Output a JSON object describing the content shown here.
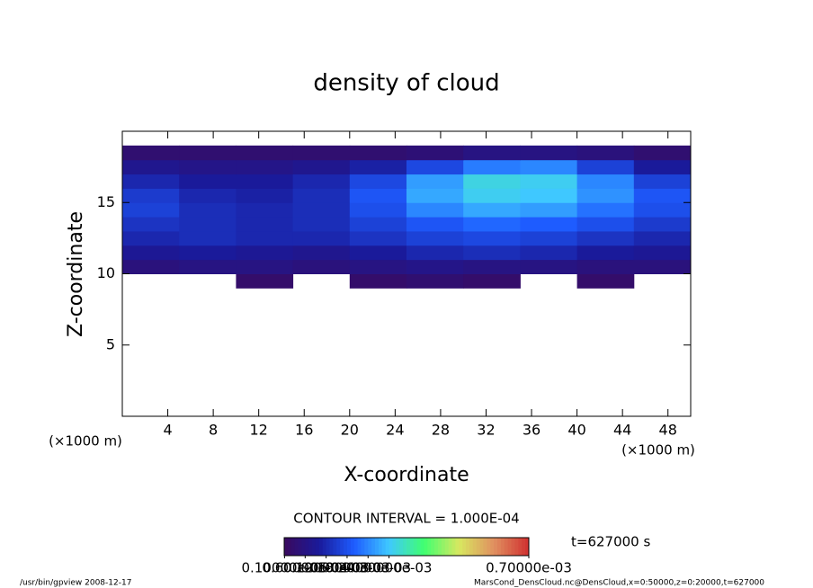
{
  "chart_data": {
    "type": "heatmap",
    "title": "density of cloud",
    "x_label": "X-coordinate",
    "y_label": "Z-coordinate",
    "x_unit": "(×1000 m)",
    "y_unit": "(×1000 m)",
    "xlim": [
      0,
      50
    ],
    "ylim": [
      0,
      20
    ],
    "xticks": [
      4,
      8,
      12,
      16,
      20,
      24,
      28,
      32,
      36,
      40,
      44,
      48
    ],
    "yticks": [
      5,
      10,
      15
    ],
    "x_edges": [
      0,
      5,
      10,
      15,
      20,
      25,
      30,
      35,
      40,
      45,
      50
    ],
    "y_edges": [
      9,
      10,
      11,
      12,
      13,
      14,
      15,
      16,
      17,
      18,
      19
    ],
    "values": [
      [
        null,
        null,
        2e-05,
        null,
        2e-05,
        3e-05,
        2e-05,
        null,
        2e-05,
        null
      ],
      [
        5e-05,
        6e-05,
        6e-05,
        5e-05,
        6e-05,
        7e-05,
        6e-05,
        6e-05,
        5e-05,
        5e-05
      ],
      [
        9e-05,
        0.0001,
        9e-05,
        8e-05,
        0.0001,
        0.00012,
        0.00013,
        0.00012,
        0.0001,
        9e-05
      ],
      [
        0.00012,
        0.00013,
        0.00012,
        0.00012,
        0.00014,
        0.00016,
        0.00017,
        0.00016,
        0.00014,
        0.00012
      ],
      [
        0.00014,
        0.00013,
        0.00012,
        0.00013,
        0.00016,
        0.00019,
        0.00021,
        0.0002,
        0.00018,
        0.00015
      ],
      [
        0.00016,
        0.00013,
        0.00012,
        0.00013,
        0.00018,
        0.00024,
        0.00027,
        0.00026,
        0.00022,
        0.00018
      ],
      [
        0.00015,
        0.00012,
        0.00011,
        0.00013,
        0.00019,
        0.00027,
        0.00031,
        0.0003,
        0.00025,
        0.00019
      ],
      [
        0.00012,
        0.0001,
        0.0001,
        0.00012,
        0.00017,
        0.00026,
        0.00032,
        0.00031,
        0.00024,
        0.00016
      ],
      [
        8e-05,
        7e-05,
        7e-05,
        8e-05,
        0.00011,
        0.00017,
        0.00023,
        0.00024,
        0.00016,
        0.0001
      ],
      [
        3e-05,
        3e-05,
        3e-05,
        3e-05,
        3e-05,
        4e-05,
        6e-05,
        6e-05,
        5e-05,
        3e-05
      ]
    ],
    "zlim": [
      0,
      0.0007
    ],
    "colormap": [
      "#3a0a5e",
      "#1a1a9a",
      "#1e5cff",
      "#3fc8ff",
      "#40ff70",
      "#d8e860",
      "#e09060",
      "#d03030"
    ],
    "colorbar_ticks": [
      {
        "value": 1e-06,
        "label": "0.10000e-05"
      },
      {
        "value": 6e-05,
        "label": "0.60000e-04"
      },
      {
        "value": 0.00012,
        "label": "0.12000e-03"
      },
      {
        "value": 0.00018,
        "label": "0.18000e-03"
      },
      {
        "value": 0.00024,
        "label": "0.24000e-03"
      },
      {
        "value": 0.0003,
        "label": "0.30000e-03"
      },
      {
        "value": 0.0007,
        "label": "0.70000e-03"
      }
    ],
    "contour_interval": "CONTOUR INTERVAL = 1.000E-04",
    "time_label": "t=627000 s",
    "footer_left": "/usr/bin/gpview  2008-12-17",
    "footer_right": "MarsCond_DensCloud.nc@DensCloud,x=0:50000,z=0:20000,t=627000"
  }
}
